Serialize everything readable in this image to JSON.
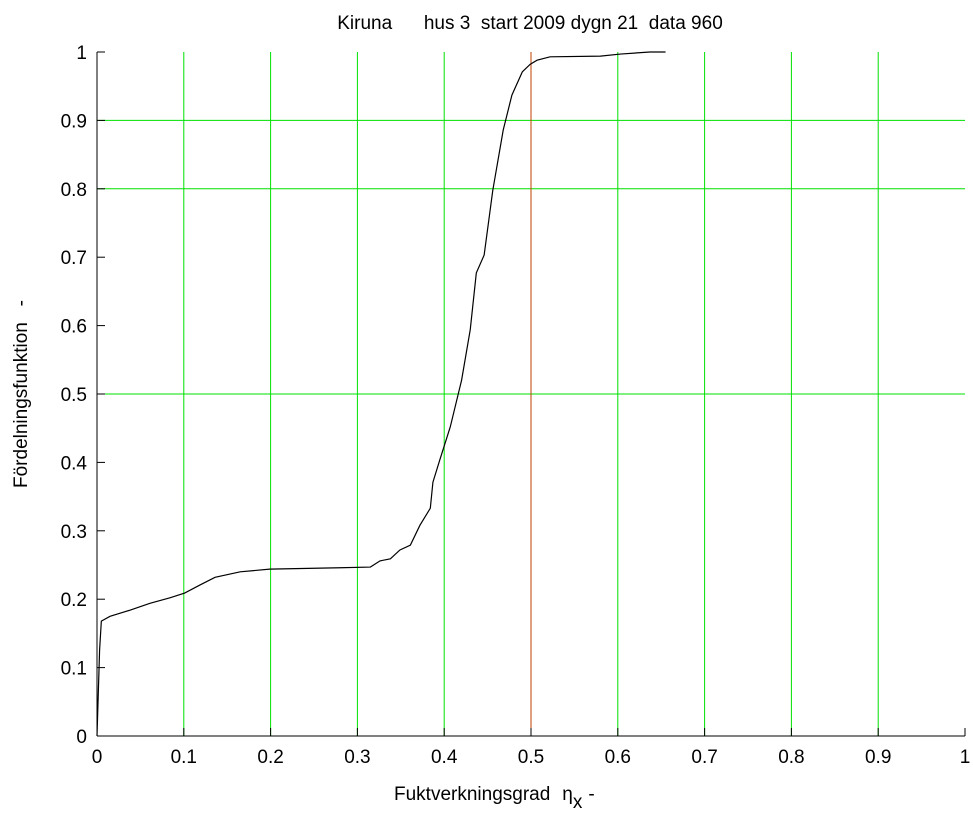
{
  "chart_data": {
    "type": "line",
    "title": "Kiruna      hus 3  start 2009 dygn 21  data 960",
    "x_label": {
      "text": "Fuktverkningsgrad",
      "symbol": "η",
      "subscript": "x",
      "unit": "-"
    },
    "y_label": "Fördelningsfunktion   -",
    "x": [
      0,
      0.003,
      0.005,
      0.015,
      0.038,
      0.061,
      0.084,
      0.101,
      0.119,
      0.136,
      0.165,
      0.199,
      0.28,
      0.315,
      0.326,
      0.338,
      0.349,
      0.361,
      0.372,
      0.384,
      0.387,
      0.395,
      0.407,
      0.42,
      0.43,
      0.437,
      0.446,
      0.456,
      0.468,
      0.478,
      0.49,
      0.499,
      0.507,
      0.522,
      0.58,
      0.603,
      0.637,
      0.655
    ],
    "series": [
      {
        "color": "#000000",
        "values": [
          0,
          0.126,
          0.168,
          0.175,
          0.184,
          0.194,
          0.202,
          0.209,
          0.221,
          0.232,
          0.24,
          0.244,
          0.246,
          0.247,
          0.256,
          0.259,
          0.272,
          0.279,
          0.308,
          0.333,
          0.371,
          0.404,
          0.452,
          0.52,
          0.594,
          0.677,
          0.703,
          0.798,
          0.886,
          0.937,
          0.971,
          0.982,
          0.988,
          0.993,
          0.994,
          0.997,
          1.0,
          1.0
        ]
      }
    ],
    "xlim": [
      0,
      1
    ],
    "ylim": [
      0,
      1
    ],
    "xticks": [
      0,
      0.1,
      0.2,
      0.3,
      0.4,
      0.5,
      0.6,
      0.7,
      0.8,
      0.9,
      1
    ],
    "yticks": [
      0,
      0.1,
      0.2,
      0.3,
      0.4,
      0.5,
      0.6,
      0.7,
      0.8,
      0.9,
      1
    ],
    "grid_color": "#00e000",
    "x_grid": [
      0.1,
      0.2,
      0.3,
      0.4,
      0.6,
      0.7,
      0.8,
      0.9
    ],
    "y_grid": [
      0.5,
      0.8,
      0.9
    ],
    "ref_line": {
      "x": 0.5,
      "color": "#c04000"
    }
  }
}
